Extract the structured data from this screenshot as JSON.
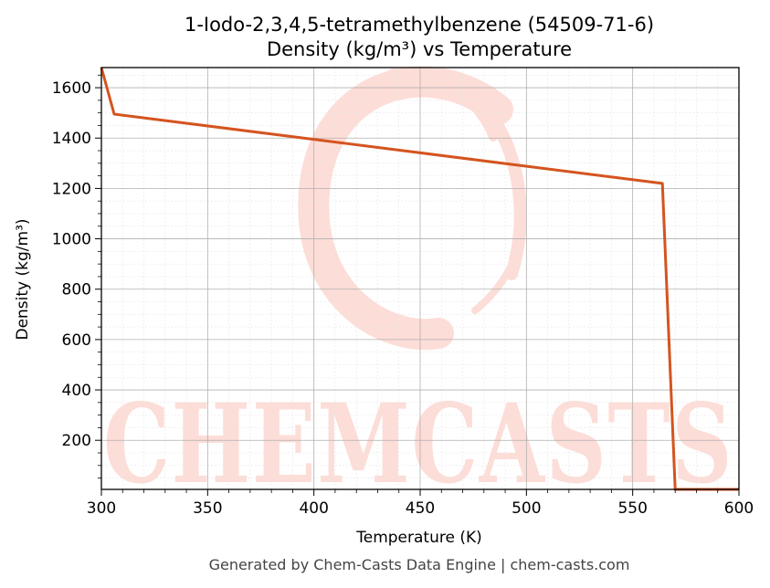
{
  "chart_data": {
    "type": "line",
    "title": "1-Iodo-2,3,4,5-tetramethylbenzene (54509-71-6)",
    "subtitle": "Density (kg/m³) vs Temperature",
    "xlabel": "Temperature (K)",
    "ylabel": "Density (kg/m³)",
    "xlim": [
      300,
      600
    ],
    "ylim": [
      5,
      1680
    ],
    "xticks": [
      300,
      350,
      400,
      450,
      500,
      550,
      600
    ],
    "yticks": [
      200,
      400,
      600,
      800,
      1000,
      1200,
      1400,
      1600
    ],
    "grid": true,
    "series": [
      {
        "color": "#d4541f",
        "x": [
          300,
          306,
          564,
          570,
          600
        ],
        "y": [
          1680,
          1495,
          1220,
          5,
          5
        ]
      }
    ]
  },
  "watermark": {
    "text": "CHEMCASTS",
    "color": "#fdddd7"
  },
  "footer": "Generated by Chem-Casts Data Engine | chem-casts.com"
}
